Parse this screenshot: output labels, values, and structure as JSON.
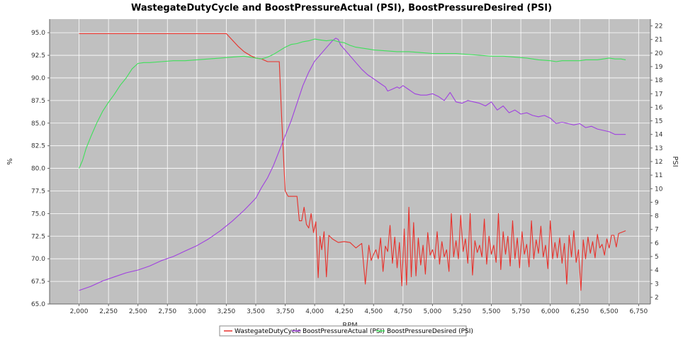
{
  "chart_data": {
    "type": "line",
    "title": "WastegateDutyCycle and BoostPressureActual (PSI), BoostPressureDesired (PSI)",
    "xlabel": "RPM",
    "ylabel_left": "%",
    "ylabel_right": "PSI",
    "xlim": [
      1750,
      6850
    ],
    "ylim_left": [
      65.0,
      96.5
    ],
    "ylim_right": [
      1.5,
      22.5
    ],
    "x_ticks": [
      "2,000",
      "2,250",
      "2,500",
      "2,750",
      "3,000",
      "3,250",
      "3,500",
      "3,750",
      "4,000",
      "4,250",
      "4,500",
      "4,750",
      "5,000",
      "5,250",
      "5,500",
      "5,750",
      "6,000",
      "6,250",
      "6,500",
      "6,750"
    ],
    "y_left_ticks": [
      "65.0",
      "67.5",
      "70.0",
      "72.5",
      "75.0",
      "77.5",
      "80.0",
      "82.5",
      "85.0",
      "87.5",
      "90.0",
      "92.5",
      "95.0"
    ],
    "y_right_ticks": [
      "2",
      "3",
      "4",
      "5",
      "6",
      "7",
      "8",
      "9",
      "10",
      "11",
      "12",
      "13",
      "14",
      "15",
      "16",
      "17",
      "18",
      "19",
      "20",
      "21",
      "22"
    ],
    "grid": true,
    "legend_position": "bottom-center",
    "colors": {
      "background": "#c0c0c0",
      "gridline": "#ffffff",
      "wastegate": "#e8302a",
      "actual": "#a040e0",
      "desired": "#3ee05a"
    },
    "series": [
      {
        "name": "WastegateDutyCycle",
        "axis": "left",
        "x": [
          2000,
          3250,
          3300,
          3350,
          3400,
          3450,
          3500,
          3550,
          3600,
          3650,
          3700,
          3720,
          3750,
          3775,
          3800,
          3850,
          3870,
          3890,
          3910,
          3930,
          3950,
          3970,
          3990,
          4010,
          4030,
          4045,
          4060,
          4080,
          4100,
          4120,
          4150,
          4200,
          4250,
          4300,
          4350,
          4400,
          4430,
          4460,
          4480,
          4500,
          4520,
          4540,
          4560,
          4580,
          4600,
          4620,
          4640,
          4660,
          4680,
          4700,
          4720,
          4740,
          4760,
          4780,
          4800,
          4820,
          4840,
          4860,
          4880,
          4900,
          4920,
          4940,
          4960,
          4980,
          5000,
          5020,
          5040,
          5060,
          5080,
          5100,
          5120,
          5140,
          5160,
          5180,
          5200,
          5220,
          5240,
          5260,
          5280,
          5300,
          5320,
          5340,
          5360,
          5380,
          5400,
          5420,
          5440,
          5460,
          5480,
          5500,
          5520,
          5540,
          5560,
          5580,
          5600,
          5620,
          5640,
          5660,
          5680,
          5700,
          5720,
          5740,
          5760,
          5780,
          5800,
          5820,
          5840,
          5860,
          5880,
          5900,
          5920,
          5940,
          5960,
          5980,
          6000,
          6020,
          6040,
          6060,
          6080,
          6100,
          6120,
          6140,
          6160,
          6180,
          6200,
          6220,
          6240,
          6260,
          6280,
          6300,
          6320,
          6340,
          6360,
          6380,
          6400,
          6420,
          6440,
          6460,
          6480,
          6500,
          6520,
          6540,
          6560,
          6580,
          6600,
          6640
        ],
        "values": [
          94.9,
          94.9,
          94.2,
          93.5,
          92.9,
          92.5,
          92.2,
          92.1,
          91.8,
          91.8,
          91.8,
          85.5,
          77.5,
          76.9,
          76.9,
          76.9,
          74.2,
          74.2,
          75.7,
          73.8,
          73.4,
          75.0,
          72.9,
          74.1,
          67.9,
          72.5,
          71.0,
          73.0,
          68.0,
          72.6,
          72.2,
          71.8,
          71.9,
          71.8,
          71.2,
          71.7,
          67.2,
          71.5,
          69.8,
          70.5,
          71.0,
          70.0,
          72.3,
          68.6,
          71.4,
          70.8,
          73.7,
          69.5,
          72.4,
          69.0,
          71.8,
          67.0,
          73.3,
          67.1,
          75.7,
          68.0,
          74.0,
          68.1,
          72.3,
          69.3,
          71.5,
          68.3,
          72.9,
          70.4,
          71.0,
          70.0,
          73.0,
          69.4,
          71.9,
          70.2,
          71.0,
          68.6,
          75.0,
          70.2,
          72.0,
          70.0,
          74.8,
          70.8,
          72.2,
          69.5,
          75.0,
          68.2,
          72.0,
          70.7,
          71.5,
          70.2,
          74.4,
          69.4,
          72.5,
          70.5,
          71.5,
          69.6,
          75.0,
          68.8,
          73.0,
          70.5,
          72.5,
          69.2,
          74.2,
          70.0,
          72.3,
          69.0,
          73.0,
          70.5,
          71.6,
          69.1,
          74.2,
          70.0,
          72.1,
          70.6,
          73.6,
          70.2,
          71.5,
          68.9,
          74.2,
          70.0,
          71.8,
          70.1,
          72.3,
          69.5,
          71.7,
          67.2,
          72.6,
          70.2,
          73.1,
          69.6,
          71.0,
          66.5,
          72.1,
          70.0,
          72.4,
          70.6,
          71.9,
          70.1,
          72.7,
          71.2,
          71.6,
          70.4,
          72.2,
          71.2,
          72.6,
          72.6,
          71.3,
          72.8,
          72.9,
          73.1
        ]
      },
      {
        "name": "BoostPressureActual (PSI)",
        "axis": "right",
        "x": [
          2000,
          2100,
          2200,
          2300,
          2400,
          2500,
          2600,
          2700,
          2800,
          2900,
          3000,
          3100,
          3200,
          3300,
          3400,
          3500,
          3550,
          3600,
          3650,
          3700,
          3750,
          3800,
          3850,
          3900,
          3950,
          4000,
          4050,
          4100,
          4150,
          4180,
          4200,
          4220,
          4250,
          4300,
          4350,
          4400,
          4450,
          4500,
          4550,
          4600,
          4620,
          4650,
          4700,
          4720,
          4750,
          4800,
          4850,
          4900,
          4950,
          5000,
          5050,
          5100,
          5150,
          5200,
          5250,
          5300,
          5350,
          5400,
          5450,
          5500,
          5550,
          5600,
          5650,
          5700,
          5750,
          5800,
          5850,
          5900,
          5950,
          6000,
          6050,
          6100,
          6150,
          6200,
          6250,
          6300,
          6350,
          6400,
          6450,
          6500,
          6550,
          6600,
          6640
        ],
        "values": [
          2.5,
          2.8,
          3.2,
          3.5,
          3.8,
          4.0,
          4.3,
          4.7,
          5.0,
          5.4,
          5.8,
          6.3,
          6.9,
          7.6,
          8.4,
          9.3,
          10.1,
          10.8,
          11.7,
          12.8,
          13.9,
          15.0,
          16.3,
          17.6,
          18.6,
          19.4,
          19.9,
          20.4,
          20.9,
          21.1,
          21.0,
          20.6,
          20.3,
          19.8,
          19.3,
          18.8,
          18.4,
          18.1,
          17.8,
          17.5,
          17.2,
          17.3,
          17.5,
          17.4,
          17.6,
          17.3,
          17.0,
          16.9,
          16.9,
          17.0,
          16.8,
          16.5,
          17.1,
          16.4,
          16.3,
          16.5,
          16.4,
          16.3,
          16.1,
          16.4,
          15.8,
          16.1,
          15.6,
          15.8,
          15.5,
          15.6,
          15.4,
          15.3,
          15.4,
          15.2,
          14.8,
          14.9,
          14.8,
          14.7,
          14.8,
          14.5,
          14.6,
          14.4,
          14.3,
          14.2,
          14.0,
          14.0,
          14.0
        ]
      },
      {
        "name": "BoostPressureDesired (PSI)",
        "axis": "left",
        "x": [
          2000,
          2030,
          2060,
          2100,
          2150,
          2200,
          2250,
          2300,
          2350,
          2400,
          2450,
          2500,
          2550,
          2600,
          2700,
          2800,
          2900,
          3000,
          3100,
          3200,
          3300,
          3400,
          3500,
          3550,
          3600,
          3650,
          3700,
          3750,
          3800,
          3850,
          3900,
          3950,
          4000,
          4050,
          4100,
          4150,
          4200,
          4250,
          4300,
          4350,
          4400,
          4450,
          4500,
          4600,
          4700,
          4800,
          4900,
          5000,
          5100,
          5200,
          5300,
          5400,
          5500,
          5600,
          5700,
          5800,
          5900,
          6000,
          6050,
          6100,
          6150,
          6200,
          6250,
          6300,
          6350,
          6400,
          6450,
          6500,
          6550,
          6600,
          6640
        ],
        "values": [
          80.0,
          80.9,
          82.2,
          83.5,
          85.0,
          86.3,
          87.3,
          88.2,
          89.2,
          90.0,
          91.0,
          91.6,
          91.7,
          91.7,
          91.8,
          91.9,
          91.9,
          92.0,
          92.1,
          92.2,
          92.3,
          92.4,
          92.2,
          92.1,
          92.3,
          92.6,
          93.0,
          93.4,
          93.7,
          93.8,
          94.0,
          94.1,
          94.3,
          94.2,
          94.1,
          94.2,
          94.0,
          93.9,
          93.6,
          93.4,
          93.3,
          93.2,
          93.1,
          93.0,
          92.9,
          92.9,
          92.8,
          92.7,
          92.7,
          92.7,
          92.6,
          92.5,
          92.4,
          92.4,
          92.3,
          92.2,
          92.0,
          91.9,
          91.8,
          91.9,
          91.9,
          91.9,
          91.9,
          92.0,
          92.0,
          92.0,
          92.1,
          92.2,
          92.1,
          92.1,
          92.0
        ]
      }
    ]
  }
}
